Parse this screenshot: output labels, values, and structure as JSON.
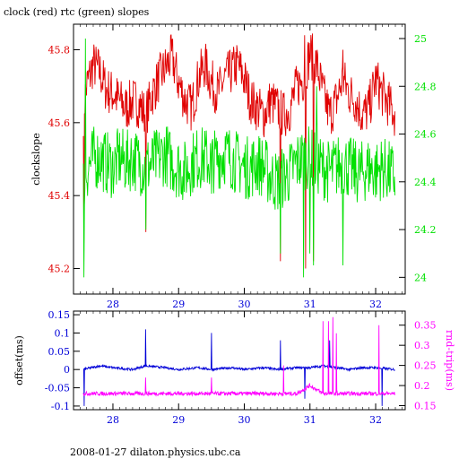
{
  "title": "clock (red) rtc (green) slopes",
  "footer": "2008-01-27  dilaton.physics.ubc.ca",
  "colors": {
    "red": "#e00000",
    "green": "#00e000",
    "blue": "#0000d8",
    "magenta": "#ff00ff",
    "axis": "#000000"
  },
  "chart_data": [
    {
      "type": "line",
      "title": "clock (red) rtc (green) slopes",
      "xlabel": "",
      "xlim": [
        27.4,
        32.45
      ],
      "xticks": [
        28,
        29,
        30,
        31,
        32
      ],
      "left_axis": {
        "label": "clockslope",
        "range": [
          45.13,
          45.87
        ],
        "ticks": [
          "45.2",
          "45.4",
          "45.6",
          "45.8"
        ],
        "tick_values": [
          45.2,
          45.4,
          45.6,
          45.8
        ]
      },
      "right_axis": {
        "label": "",
        "range": [
          23.93,
          25.06
        ],
        "ticks": [
          "24",
          "24.2",
          "24.4",
          "24.6",
          "24.8",
          "25"
        ],
        "tick_values": [
          24,
          24.2,
          24.4,
          24.6,
          24.8,
          25
        ]
      },
      "series": [
        {
          "axis": "left",
          "color": "red",
          "x": [
            27.55,
            27.6,
            27.7,
            27.8,
            27.9,
            28.0,
            28.1,
            28.2,
            28.3,
            28.4,
            28.5,
            28.6,
            28.7,
            28.8,
            28.9,
            29.0,
            29.1,
            29.2,
            29.3,
            29.4,
            29.5,
            29.6,
            29.7,
            29.8,
            29.9,
            30.0,
            30.1,
            30.2,
            30.3,
            30.4,
            30.5,
            30.6,
            30.7,
            30.8,
            30.9,
            31.0,
            31.1,
            31.2,
            31.3,
            31.4,
            31.5,
            31.6,
            31.7,
            31.8,
            31.9,
            32.0,
            32.1,
            32.2,
            32.3
          ],
          "y": [
            45.63,
            45.7,
            45.76,
            45.74,
            45.69,
            45.68,
            45.66,
            45.64,
            45.66,
            45.65,
            45.62,
            45.68,
            45.72,
            45.75,
            45.78,
            45.71,
            45.66,
            45.64,
            45.72,
            45.76,
            45.71,
            45.68,
            45.72,
            45.74,
            45.76,
            45.72,
            45.66,
            45.64,
            45.62,
            45.66,
            45.64,
            45.62,
            45.64,
            45.7,
            45.72,
            45.79,
            45.76,
            45.68,
            45.62,
            45.66,
            45.72,
            45.68,
            45.66,
            45.62,
            45.64,
            45.72,
            45.68,
            45.65,
            45.62
          ]
        },
        {
          "axis": "right",
          "color": "green",
          "x": [
            27.55,
            27.6,
            27.7,
            27.8,
            27.9,
            28.0,
            28.1,
            28.2,
            28.3,
            28.4,
            28.5,
            28.6,
            28.7,
            28.8,
            28.9,
            29.0,
            29.1,
            29.2,
            29.3,
            29.4,
            29.5,
            29.6,
            29.7,
            29.8,
            29.9,
            30.0,
            30.1,
            30.2,
            30.3,
            30.4,
            30.5,
            30.6,
            30.7,
            30.8,
            30.9,
            31.0,
            31.1,
            31.2,
            31.3,
            31.4,
            31.5,
            31.6,
            31.7,
            31.8,
            31.9,
            32.0,
            32.1,
            32.2,
            32.3
          ],
          "y": [
            24.4,
            24.45,
            24.5,
            24.5,
            24.48,
            24.46,
            24.5,
            24.48,
            24.5,
            24.48,
            24.46,
            24.48,
            24.5,
            24.52,
            24.48,
            24.46,
            24.44,
            24.48,
            24.5,
            24.5,
            24.48,
            24.5,
            24.52,
            24.5,
            24.48,
            24.46,
            24.46,
            24.48,
            24.46,
            24.42,
            24.4,
            24.42,
            24.44,
            24.48,
            24.5,
            24.5,
            24.48,
            24.46,
            24.44,
            24.46,
            24.48,
            24.46,
            24.44,
            24.44,
            24.46,
            24.44,
            24.46,
            24.44,
            24.42
          ]
        }
      ]
    },
    {
      "type": "line",
      "xlim": [
        27.4,
        32.45
      ],
      "xticks": [
        28,
        29,
        30,
        31,
        32
      ],
      "left_axis": {
        "label": "offset(ms)",
        "range": [
          -0.11,
          0.16
        ],
        "ticks": [
          "0.15",
          "0.1",
          "0.05",
          "0",
          "-0.05",
          "-0.1"
        ],
        "tick_values": [
          0.15,
          0.1,
          0.05,
          0,
          -0.05,
          -0.1
        ]
      },
      "right_axis": {
        "label": "rnd-trip(ms)",
        "range": [
          0.14,
          0.385
        ],
        "ticks": [
          "0.35",
          "0.3",
          "0.25",
          "0.2",
          "0.15"
        ],
        "tick_values": [
          0.35,
          0.3,
          0.25,
          0.2,
          0.15
        ]
      },
      "series": [
        {
          "axis": "left",
          "color": "blue",
          "x": [
            27.55,
            27.8,
            28.0,
            28.3,
            28.5,
            28.8,
            29.0,
            29.3,
            29.5,
            29.8,
            30.0,
            30.3,
            30.5,
            30.8,
            31.0,
            31.2,
            31.4,
            31.6,
            31.8,
            32.0,
            32.3
          ],
          "y": [
            0.0,
            0.01,
            0.005,
            0.0,
            0.01,
            0.005,
            0.0,
            0.005,
            0.0,
            0.005,
            0.0,
            0.005,
            0.0,
            0.005,
            0.005,
            0.01,
            0.005,
            0.0,
            0.005,
            0.005,
            0.0
          ]
        },
        {
          "axis": "right",
          "color": "magenta",
          "x": [
            27.55,
            27.8,
            28.0,
            28.3,
            28.5,
            28.8,
            29.0,
            29.3,
            29.5,
            29.8,
            30.0,
            30.3,
            30.5,
            30.8,
            31.0,
            31.2,
            31.4,
            31.6,
            31.8,
            32.0,
            32.3
          ],
          "y": [
            0.18,
            0.18,
            0.18,
            0.18,
            0.18,
            0.18,
            0.18,
            0.18,
            0.18,
            0.18,
            0.18,
            0.18,
            0.18,
            0.18,
            0.2,
            0.18,
            0.18,
            0.18,
            0.18,
            0.18,
            0.18
          ]
        }
      ]
    }
  ]
}
